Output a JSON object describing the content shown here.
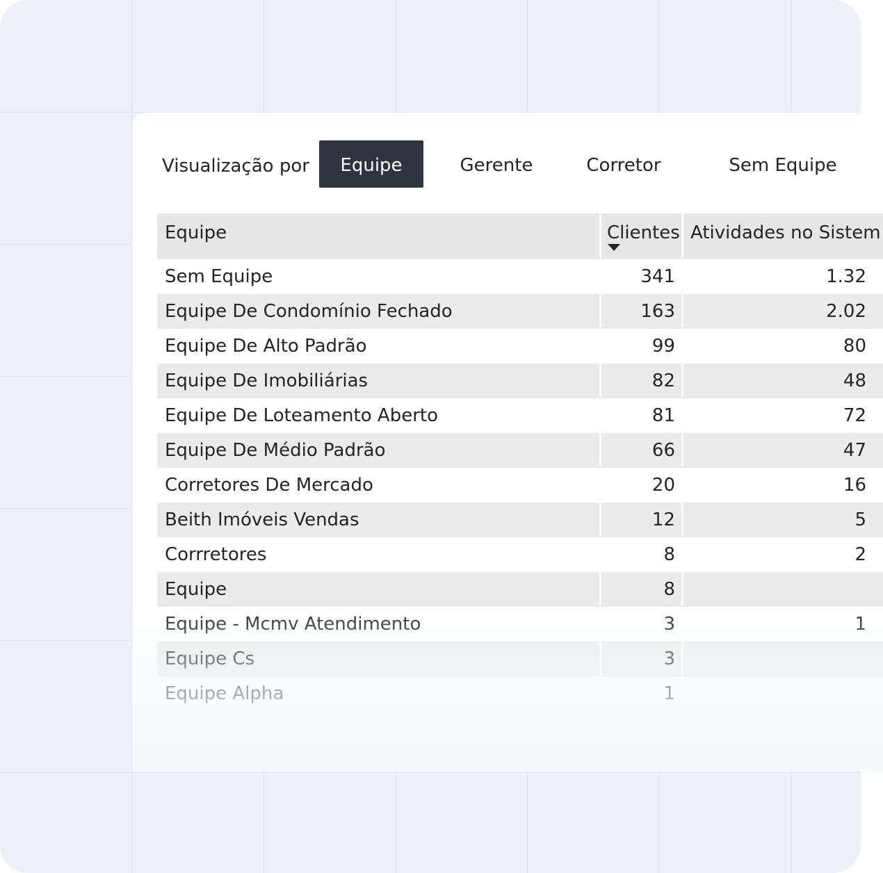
{
  "toolbar": {
    "label": "Visualização por",
    "buttons": [
      "Equipe",
      "Gerente",
      "Corretor",
      "Sem Equipe"
    ],
    "active": "Equipe"
  },
  "table": {
    "columns": [
      "Equipe",
      "Clientes",
      "Atividades no Sistem"
    ],
    "sort_column": "Clientes",
    "sort_direction": "descending",
    "rows": [
      {
        "name": "Sem Equipe",
        "clientes": "341",
        "atividades": "1.32"
      },
      {
        "name": "Equipe De Condomínio Fechado",
        "clientes": "163",
        "atividades": "2.02"
      },
      {
        "name": "Equipe De Alto Padrão",
        "clientes": "99",
        "atividades": "80"
      },
      {
        "name": "Equipe De Imobiliárias",
        "clientes": "82",
        "atividades": "48"
      },
      {
        "name": "Equipe De Loteamento Aberto",
        "clientes": "81",
        "atividades": "72"
      },
      {
        "name": "Equipe De Médio Padrão",
        "clientes": "66",
        "atividades": "47"
      },
      {
        "name": "Corretores De Mercado",
        "clientes": "20",
        "atividades": "16"
      },
      {
        "name": "Beith Imóveis Vendas",
        "clientes": "12",
        "atividades": "5"
      },
      {
        "name": "Corrretores",
        "clientes": "8",
        "atividades": "2"
      },
      {
        "name": "Equipe",
        "clientes": "8",
        "atividades": ""
      },
      {
        "name": "Equipe - Mcmv Atendimento",
        "clientes": "3",
        "atividades": "1"
      },
      {
        "name": "Equipe Cs",
        "clientes": "3",
        "atividades": ""
      },
      {
        "name": "Equipe Alpha",
        "clientes": "1",
        "atividades": ""
      }
    ]
  },
  "colors": {
    "active_button_bg": "#2e3440",
    "header_bg": "#e6e6e6",
    "stripe_bg": "#ebebeb",
    "canvas_bg": "#edf1f6"
  }
}
